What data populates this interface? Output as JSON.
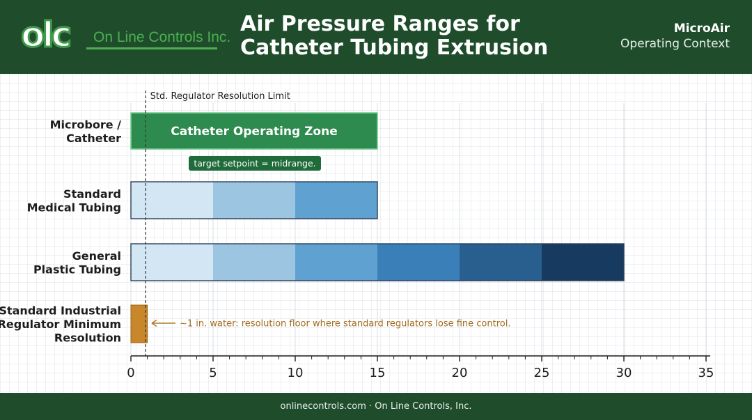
{
  "header": {
    "logo_mark": "olc",
    "logo_text": "On Line Controls Inc.",
    "title_line1": "Air Pressure Ranges for",
    "title_line2": "Catheter Tubing Extrusion",
    "context_product": "MicroAir",
    "context_label": "Operating Context"
  },
  "footer": {
    "text": "onlinecontrols.com · On Line Controls, Inc."
  },
  "colors": {
    "header_bg": "#1f4d2c",
    "catheter_zone": "#2e8b4f",
    "regulator_bar": "#c8872a",
    "blue_ramp": [
      "#d3e6f4",
      "#9cc5e2",
      "#5fa2d2",
      "#3b7fb8",
      "#285f8e",
      "#163a60"
    ]
  },
  "chart_data": {
    "type": "bar",
    "orientation": "horizontal",
    "stacked": true,
    "xlim": [
      0,
      35
    ],
    "xticks": [
      0,
      5,
      10,
      15,
      20,
      25,
      30,
      35
    ],
    "grid": true,
    "categories": [
      "Microbore / Catheter",
      "Standard Medical Tubing",
      "General Plastic Tubing",
      "Standard Industrial Regulator Minimum Resolution"
    ],
    "bars": [
      {
        "category": "Microbore / Catheter",
        "start": 0,
        "end": 15,
        "label": "Catheter Operating Zone",
        "color": "#2e8b4f"
      },
      {
        "category": "Standard Medical Tubing",
        "segments": [
          [
            0,
            5
          ],
          [
            5,
            10
          ],
          [
            10,
            15
          ]
        ]
      },
      {
        "category": "General Plastic Tubing",
        "segments": [
          [
            0,
            5
          ],
          [
            5,
            10
          ],
          [
            10,
            15
          ],
          [
            15,
            20
          ],
          [
            20,
            25
          ],
          [
            25,
            30
          ]
        ]
      },
      {
        "category": "Standard Industrial Regulator Minimum Resolution",
        "start": 0,
        "end": 1,
        "color": "#c8872a"
      }
    ],
    "reference_line": {
      "x": 1,
      "label": "Std. Regulator Resolution Limit"
    },
    "annotations": [
      {
        "text": "target setpoint = midrange.",
        "category": "Microbore / Catheter",
        "x": 7.5
      },
      {
        "text": "~1 in. water: resolution floor where standard regulators lose fine control.",
        "category": "Standard Industrial Regulator Minimum Resolution",
        "x": 1.2
      }
    ]
  }
}
